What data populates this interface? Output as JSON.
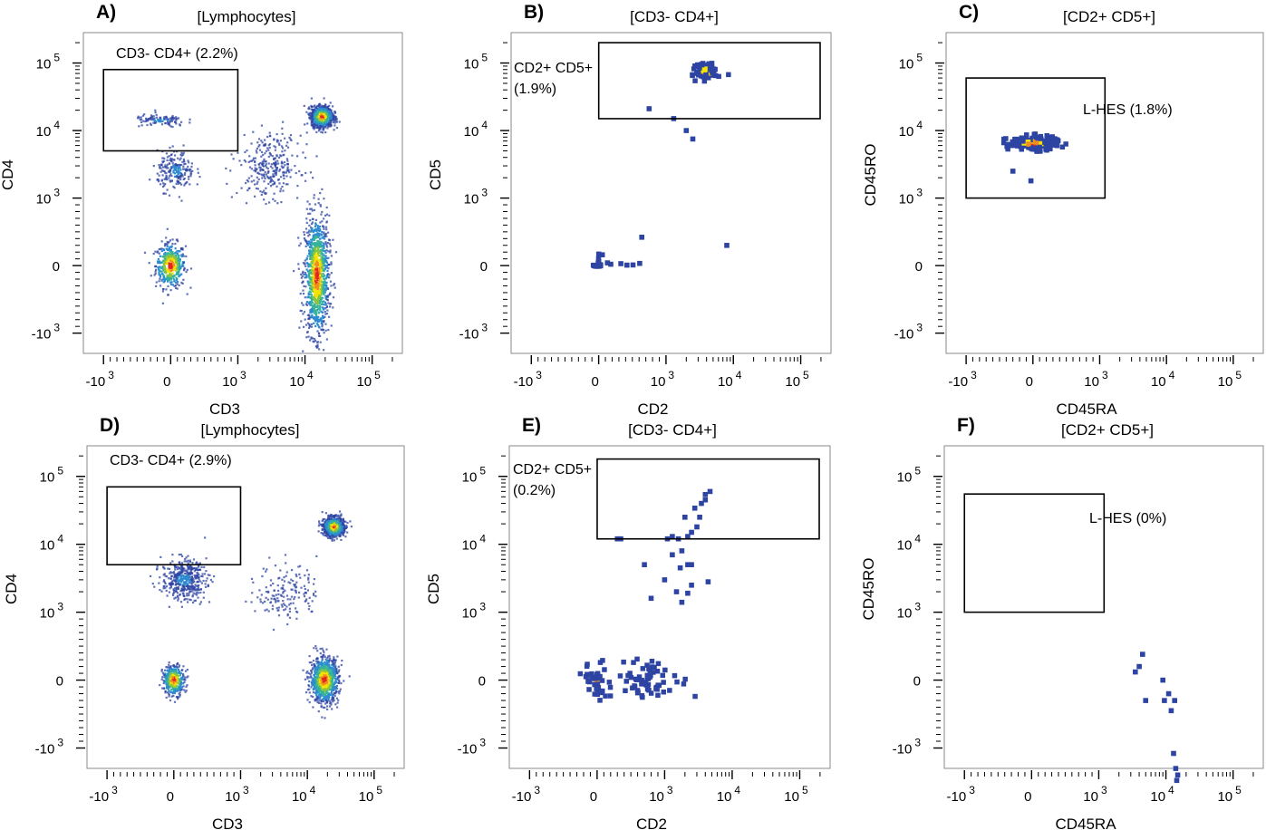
{
  "chart_data": [
    {
      "panel": "A)",
      "title": "[Lymphocytes]",
      "type": "scatter",
      "xlabel": "CD3",
      "ylabel": "CD4",
      "scale": "biexponential",
      "xticks": [
        "-10 3",
        "0",
        "10 3",
        "10 4",
        "10 5"
      ],
      "yticks": [
        "10 5",
        "10 4",
        "10 3",
        "0",
        "-10 3"
      ],
      "gates": [
        {
          "label": "CD3- CD4+ (2.2%)",
          "x_range": [
            -1000,
            1000
          ],
          "y_range": [
            5000,
            80000
          ]
        }
      ],
      "populations": [
        {
          "x": 0,
          "y": 0,
          "count": 420,
          "spread": [
            200,
            300
          ],
          "density": "high"
        },
        {
          "x": 15000,
          "y": -150,
          "count": 1100,
          "spread": [
            7000,
            800
          ],
          "density": "high"
        },
        {
          "x": 18000,
          "y": 16000,
          "count": 1100,
          "spread": [
            7000,
            6000
          ],
          "density": "high"
        },
        {
          "x": 80,
          "y": 2500,
          "count": 220,
          "spread": [
            250,
            2000
          ],
          "density": "low"
        },
        {
          "x": -150,
          "y": 14000,
          "count": 110,
          "spread": [
            350,
            3000
          ],
          "density": "low"
        },
        {
          "x": 3000,
          "y": 3000,
          "count": 300,
          "spread": [
            5000,
            5000
          ],
          "density": "scatter"
        }
      ]
    },
    {
      "panel": "B)",
      "title": "[CD3- CD4+]",
      "type": "scatter",
      "xlabel": "CD2",
      "ylabel": "CD5",
      "scale": "biexponential",
      "xticks": [
        "-10 3",
        "0",
        "10 3",
        "10 4",
        "10 5"
      ],
      "yticks": [
        "10 5",
        "10 4",
        "10 3",
        "0",
        "-10 3"
      ],
      "gates": [
        {
          "label": "CD2+ CD5+ (1.9%)",
          "x_range": [
            1,
            5000000
          ],
          "y_range": [
            15000,
            200000
          ]
        }
      ],
      "populations": [
        {
          "x": 4000,
          "y": 75000,
          "count": 240,
          "spread": [
            1500,
            18000
          ],
          "density": "high"
        }
      ],
      "points": [
        [
          1,
          170
        ],
        [
          30,
          6
        ],
        [
          -65,
          -4
        ],
        [
          -40,
          -10
        ],
        [
          -2,
          -11
        ],
        [
          11,
          -2
        ],
        [
          -7,
          39
        ],
        [
          10,
          1
        ],
        [
          -1,
          100
        ],
        [
          1,
          56
        ],
        [
          24,
          14
        ],
        [
          27,
          -2
        ],
        [
          -40,
          1
        ],
        [
          -1,
          1
        ],
        [
          -79,
          5
        ],
        [
          55,
          160
        ],
        [
          420,
          7
        ],
        [
          510,
          10
        ],
        [
          610,
          32
        ],
        [
          130,
          41
        ],
        [
          180,
          21
        ],
        [
          330,
          28
        ],
        [
          640,
          420
        ],
        [
          1300,
          15000
        ],
        [
          2000,
          10000
        ],
        [
          2500,
          7500
        ],
        [
          750,
          21000
        ],
        [
          8000,
          300
        ],
        [
          -14,
          3
        ],
        [
          13,
          -5
        ]
      ]
    },
    {
      "panel": "C)",
      "title": "[CD2+ CD5+]",
      "type": "scatter",
      "xlabel": "CD45RA",
      "ylabel": "CD45RO",
      "scale": "biexponential",
      "xticks": [
        "-10 3",
        "0",
        "10 3",
        "10 4",
        "10 5"
      ],
      "yticks": [
        "10 5",
        "10 4",
        "10 3",
        "0",
        "-10 3"
      ],
      "gates": [
        {
          "label": "L-HES (1.8%)",
          "x_range": [
            -1000,
            1200
          ],
          "y_range": [
            1000,
            60000
          ]
        }
      ],
      "populations": [
        {
          "x": 0,
          "y": 6500,
          "count": 300,
          "spread": [
            350,
            1500
          ],
          "density": "high"
        }
      ],
      "points": [
        [
          -30,
          1800
        ],
        [
          -300,
          2500
        ]
      ]
    },
    {
      "panel": "D)",
      "title": "[Lymphocytes]",
      "type": "scatter",
      "xlabel": "CD3",
      "ylabel": "CD4",
      "scale": "biexponential",
      "xticks": [
        "-10 3",
        "0",
        "10 3",
        "10 4",
        "10 5"
      ],
      "yticks": [
        "10 5",
        "10 4",
        "10 3",
        "0",
        "-10 3"
      ],
      "gates": [
        {
          "label": "CD3- CD4+ (2.9%)",
          "x_range": [
            -1000,
            1000
          ],
          "y_range": [
            5000,
            70000
          ]
        }
      ],
      "populations": [
        {
          "x": 0,
          "y": 0,
          "count": 350,
          "spread": [
            150,
            200
          ],
          "density": "high"
        },
        {
          "x": 18000,
          "y": 0,
          "count": 900,
          "spread": [
            10000,
            300
          ],
          "density": "high"
        },
        {
          "x": 25000,
          "y": 18000,
          "count": 1000,
          "spread": [
            9000,
            6000
          ],
          "density": "high"
        },
        {
          "x": 150,
          "y": 3000,
          "count": 450,
          "spread": [
            300,
            2500
          ],
          "density": "low"
        },
        {
          "x": 5000,
          "y": 2000,
          "count": 160,
          "spread": [
            8000,
            3000
          ],
          "density": "scatter"
        }
      ]
    },
    {
      "panel": "E)",
      "title": "[CD3- CD4+]",
      "type": "scatter",
      "xlabel": "CD2",
      "ylabel": "CD5",
      "scale": "biexponential",
      "xticks": [
        "-10 3",
        "0",
        "10 3",
        "10 4",
        "10 5"
      ],
      "yticks": [
        "10 5",
        "10 4",
        "10 3",
        "0",
        "-10 3"
      ],
      "gates": [
        {
          "label": "CD2+ CD5+ (0.2%)",
          "x_range": [
            1,
            5000000
          ],
          "y_range": [
            12000,
            180000
          ]
        }
      ],
      "populations": [
        {
          "x": 0,
          "y": 0,
          "count": 70,
          "spread": [
            180,
            250
          ],
          "density": "mid"
        },
        {
          "x": 800,
          "y": 0,
          "count": 120,
          "spread": [
            1200,
            250
          ],
          "density": "low"
        }
      ],
      "points": [
        [
          300,
          12000
        ],
        [
          350,
          12000
        ],
        [
          1100,
          12000
        ],
        [
          1300,
          13000
        ],
        [
          1600,
          12000
        ],
        [
          2200,
          13000
        ],
        [
          2500,
          15000
        ],
        [
          3000,
          18000
        ],
        [
          3300,
          25000
        ],
        [
          2800,
          34000
        ],
        [
          3500,
          40000
        ],
        [
          4000,
          54000
        ],
        [
          4700,
          60000
        ],
        [
          4000,
          45000
        ],
        [
          2000,
          25000
        ],
        [
          1800,
          8000
        ],
        [
          1300,
          7000
        ],
        [
          2200,
          5000
        ],
        [
          1700,
          4500
        ],
        [
          1000,
          3000
        ],
        [
          700,
          5000
        ],
        [
          1500,
          2000
        ],
        [
          2500,
          2500
        ],
        [
          4400,
          2800
        ],
        [
          800,
          1600
        ],
        [
          1800,
          1400
        ],
        [
          2200,
          1900
        ],
        [
          2500,
          5000
        ]
      ]
    },
    {
      "panel": "F)",
      "title": "[CD2+ CD5+]",
      "type": "scatter",
      "xlabel": "CD45RA",
      "ylabel": "CD45RO",
      "scale": "biexponential",
      "xticks": [
        "-10 3",
        "0",
        "10 3",
        "10 4",
        "10 5"
      ],
      "yticks": [
        "10 5",
        "10 4",
        "10 3",
        "0",
        "-10 3"
      ],
      "gates": [
        {
          "label": "L-HES (0%)",
          "x_range": [
            -1000,
            1200
          ],
          "y_range": [
            1000,
            55000
          ]
        }
      ],
      "points": [
        [
          3500,
          120
        ],
        [
          4000,
          200
        ],
        [
          4500,
          380
        ],
        [
          5000,
          -300
        ],
        [
          9000,
          0
        ],
        [
          11000,
          -200
        ],
        [
          9500,
          -300
        ],
        [
          13500,
          -300
        ],
        [
          14000,
          -2000
        ],
        [
          15000,
          -2500
        ],
        [
          14500,
          -3000
        ],
        [
          13000,
          -1200
        ],
        [
          12000,
          -450
        ]
      ]
    }
  ],
  "colors": {
    "density_ramp": [
      "#2e44a3",
      "#2d8ccf",
      "#35b29a",
      "#8bc53f",
      "#f6e400",
      "#f08d22",
      "#e32621"
    ],
    "axis": "#000000",
    "gate": "#000000"
  }
}
